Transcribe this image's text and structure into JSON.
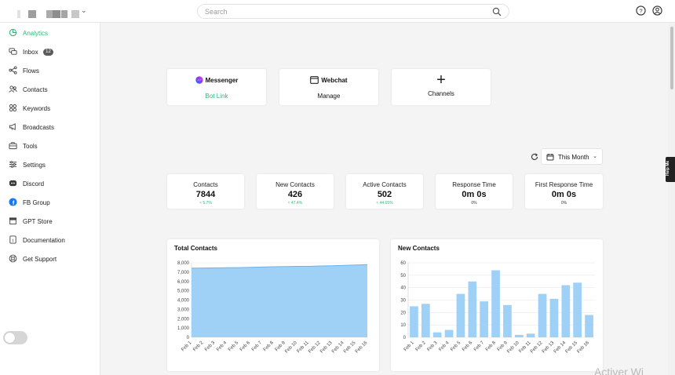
{
  "header": {
    "search_placeholder": "Search"
  },
  "sidebar": {
    "items": [
      {
        "label": "Analytics",
        "icon": "analytics-icon",
        "active": true
      },
      {
        "label": "Inbox",
        "icon": "inbox-icon",
        "badge": "12"
      },
      {
        "label": "Flows",
        "icon": "flows-icon"
      },
      {
        "label": "Contacts",
        "icon": "contacts-icon"
      },
      {
        "label": "Keywords",
        "icon": "keywords-icon"
      },
      {
        "label": "Broadcasts",
        "icon": "broadcasts-icon"
      },
      {
        "label": "Tools",
        "icon": "tools-icon"
      },
      {
        "label": "Settings",
        "icon": "settings-icon"
      },
      {
        "label": "Discord",
        "icon": "discord-icon"
      },
      {
        "label": "FB Group",
        "icon": "facebook-icon"
      },
      {
        "label": "GPT Store",
        "icon": "store-icon"
      },
      {
        "label": "Documentation",
        "icon": "documentation-icon"
      },
      {
        "label": "Get Support",
        "icon": "support-icon"
      }
    ]
  },
  "channels": {
    "messenger": {
      "title": "Messenger",
      "link": "Bot Link"
    },
    "webchat": {
      "title": "Webchat",
      "link": "Manage"
    },
    "add": {
      "label": "Channels",
      "symbol": "+"
    }
  },
  "date_filter": {
    "label": "This Month"
  },
  "stats": [
    {
      "label": "Contacts",
      "value": "7844",
      "change": "≈ 5.7%"
    },
    {
      "label": "New Contacts",
      "value": "426",
      "change": "≈ 47.4%"
    },
    {
      "label": "Active Contacts",
      "value": "502",
      "change": "≈ 44.65%"
    },
    {
      "label": "Response Time",
      "value": "0m 0s",
      "change": "0%"
    },
    {
      "label": "First Response Time",
      "value": "0m 0s",
      "change": "0%"
    }
  ],
  "help_label": "Help Me",
  "watermark": "Activer Wi",
  "colors": {
    "accent": "#2fb67a",
    "chart_fill": "#9fd0f5",
    "chart_line": "#6cb2ee"
  },
  "chart_data": [
    {
      "type": "area",
      "title": "Total Contacts",
      "x": [
        "Feb 1",
        "Feb 2",
        "Feb 3",
        "Feb 4",
        "Feb 5",
        "Feb 6",
        "Feb 7",
        "Feb 8",
        "Feb 9",
        "Feb 10",
        "Feb 11",
        "Feb 12",
        "Feb 13",
        "Feb 14",
        "Feb 15",
        "Feb 16"
      ],
      "values": [
        7420,
        7445,
        7450,
        7470,
        7490,
        7520,
        7545,
        7580,
        7600,
        7620,
        7625,
        7660,
        7690,
        7730,
        7775,
        7795
      ],
      "ylim": [
        0,
        8000
      ],
      "yticks": [
        "0",
        "1,000",
        "2,000",
        "3,000",
        "4,000",
        "5,000",
        "6,000",
        "7,000",
        "8,000"
      ],
      "yticks_values": [
        0,
        1000,
        2000,
        3000,
        4000,
        5000,
        6000,
        7000,
        8000
      ],
      "grid": true
    },
    {
      "type": "bar",
      "title": "New Contacts",
      "categories": [
        "Feb 1",
        "Feb 2",
        "Feb 3",
        "Feb 4",
        "Feb 5",
        "Feb 6",
        "Feb 7",
        "Feb 8",
        "Feb 9",
        "Feb 10",
        "Feb 11",
        "Feb 12",
        "Feb 13",
        "Feb 14",
        "Feb 15",
        "Feb 16"
      ],
      "values": [
        25,
        27,
        4,
        6,
        35,
        45,
        29,
        54,
        26,
        2,
        3,
        35,
        31,
        42,
        44,
        18
      ],
      "ylim": [
        0,
        60
      ],
      "yticks": [
        "0",
        "10",
        "20",
        "30",
        "40",
        "50",
        "60"
      ],
      "yticks_values": [
        0,
        10,
        20,
        30,
        40,
        50,
        60
      ],
      "grid": true
    }
  ]
}
